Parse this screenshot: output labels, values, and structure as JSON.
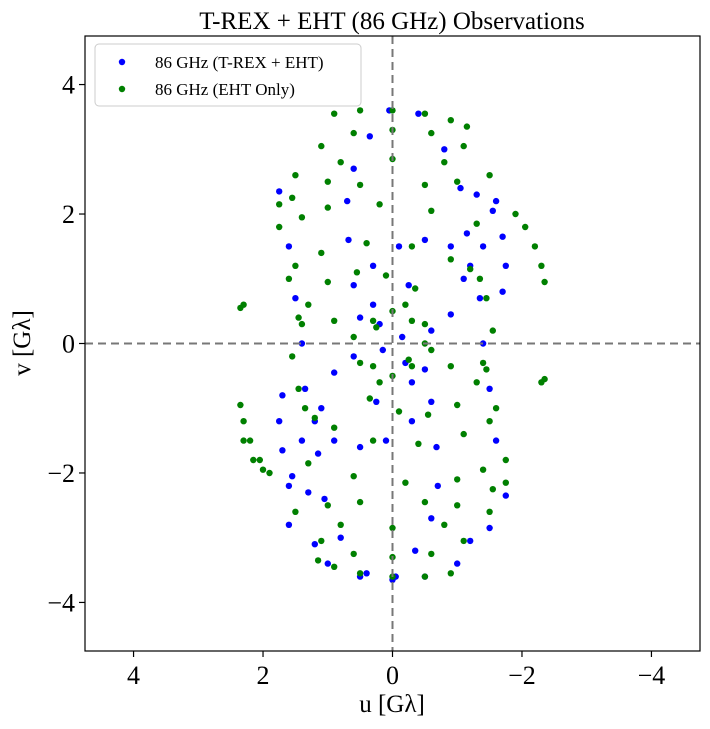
{
  "chart_data": {
    "type": "scatter",
    "title": "T-REX + EHT (86 GHz) Observations",
    "xlabel": "u [Gλ]",
    "ylabel": "v [Gλ]",
    "xlim": [
      4.75,
      -4.75
    ],
    "ylim": [
      -4.75,
      4.75
    ],
    "xticks": [
      4,
      2,
      0,
      -2,
      -4
    ],
    "xtick_labels": [
      "4",
      "2",
      "0",
      "−2",
      "−4"
    ],
    "yticks": [
      4,
      2,
      0,
      -2,
      -4
    ],
    "ytick_labels": [
      "4",
      "2",
      "0",
      "−2",
      "−4"
    ],
    "grid": false,
    "reference_lines": {
      "x": 0,
      "y": 0,
      "style": "dashed",
      "color": "#777777"
    },
    "legend": {
      "position": "upper-left"
    },
    "series": [
      {
        "name": "86 GHz (T-REX + EHT)",
        "color": "#0000ff",
        "points": [
          [
            0.05,
            3.6
          ],
          [
            0.35,
            3.2
          ],
          [
            0.6,
            2.7
          ],
          [
            0.7,
            2.2
          ],
          [
            0.68,
            1.6
          ],
          [
            0.6,
            0.9
          ],
          [
            0.5,
            0.4
          ],
          [
            -0.05,
            -3.6
          ],
          [
            -0.35,
            -3.2
          ],
          [
            -0.6,
            -2.7
          ],
          [
            -0.7,
            -2.2
          ],
          [
            -0.68,
            -1.6
          ],
          [
            -0.6,
            -0.9
          ],
          [
            -0.5,
            -0.4
          ],
          [
            -0.4,
            3.55
          ],
          [
            -0.8,
            3.0
          ],
          [
            -1.05,
            2.4
          ],
          [
            -1.15,
            1.7
          ],
          [
            -1.1,
            1.0
          ],
          [
            -0.9,
            0.45
          ],
          [
            0.4,
            -3.55
          ],
          [
            0.8,
            -3.0
          ],
          [
            1.05,
            -2.4
          ],
          [
            1.15,
            -1.7
          ],
          [
            1.1,
            -1.0
          ],
          [
            0.9,
            -0.45
          ],
          [
            1.75,
            2.35
          ],
          [
            1.6,
            1.5
          ],
          [
            1.5,
            0.7
          ],
          [
            1.4,
            0.0
          ],
          [
            1.35,
            -0.7
          ],
          [
            1.4,
            -1.5
          ],
          [
            1.6,
            -2.2
          ],
          [
            -1.75,
            -2.35
          ],
          [
            -1.6,
            -1.5
          ],
          [
            -1.5,
            -0.7
          ],
          [
            -1.4,
            0.0
          ],
          [
            -1.35,
            0.7
          ],
          [
            -1.4,
            1.5
          ],
          [
            -1.6,
            2.2
          ],
          [
            -1.2,
            1.2
          ],
          [
            -0.9,
            1.5
          ],
          [
            -0.5,
            1.6
          ],
          [
            -0.1,
            1.5
          ],
          [
            0.3,
            1.2
          ],
          [
            1.2,
            -1.2
          ],
          [
            0.9,
            -1.5
          ],
          [
            0.5,
            -1.6
          ],
          [
            0.1,
            -1.5
          ],
          [
            -0.3,
            -1.2
          ],
          [
            -1.3,
            2.3
          ],
          [
            -1.55,
            2.05
          ],
          [
            -1.7,
            1.65
          ],
          [
            -1.75,
            1.2
          ],
          [
            -1.7,
            0.8
          ],
          [
            1.3,
            -2.3
          ],
          [
            1.55,
            -2.05
          ],
          [
            1.7,
            -1.65
          ],
          [
            1.75,
            -1.2
          ],
          [
            1.7,
            -0.8
          ],
          [
            1.0,
            -3.4
          ],
          [
            0.5,
            -3.6
          ],
          [
            0.0,
            -3.65
          ],
          [
            -0.5,
            -3.6
          ],
          [
            -1.0,
            -3.4
          ],
          [
            1.6,
            -2.8
          ],
          [
            1.2,
            -3.1
          ],
          [
            -1.2,
            -3.05
          ],
          [
            -1.5,
            -2.85
          ],
          [
            0.2,
            0.3
          ],
          [
            0.3,
            0.6
          ],
          [
            -0.2,
            -0.3
          ],
          [
            -0.3,
            -0.6
          ],
          [
            0.15,
            -0.1
          ],
          [
            -0.15,
            0.1
          ],
          [
            -0.25,
            0.9
          ],
          [
            0.25,
            -0.9
          ],
          [
            0.6,
            -0.2
          ],
          [
            -0.6,
            0.2
          ]
        ]
      },
      {
        "name": "86 GHz (EHT Only)",
        "color": "#008000",
        "points": [
          [
            0.9,
            3.55
          ],
          [
            0.5,
            3.6
          ],
          [
            0.0,
            3.6
          ],
          [
            -0.5,
            3.55
          ],
          [
            -0.9,
            3.45
          ],
          [
            -1.15,
            3.35
          ],
          [
            -0.9,
            -3.55
          ],
          [
            -0.5,
            -3.6
          ],
          [
            0.0,
            -3.6
          ],
          [
            0.5,
            -3.55
          ],
          [
            0.9,
            -3.45
          ],
          [
            1.15,
            -3.35
          ],
          [
            1.1,
            3.05
          ],
          [
            0.6,
            3.25
          ],
          [
            0.0,
            3.3
          ],
          [
            -0.6,
            3.25
          ],
          [
            -1.1,
            3.05
          ],
          [
            -1.1,
            -3.05
          ],
          [
            -0.6,
            -3.25
          ],
          [
            0.0,
            -3.3
          ],
          [
            0.6,
            -3.25
          ],
          [
            1.1,
            -3.05
          ],
          [
            1.5,
            2.6
          ],
          [
            0.8,
            2.8
          ],
          [
            0.0,
            2.85
          ],
          [
            -0.8,
            2.8
          ],
          [
            -1.5,
            2.6
          ],
          [
            -1.5,
            -2.6
          ],
          [
            -0.8,
            -2.8
          ],
          [
            0.0,
            -2.85
          ],
          [
            0.8,
            -2.8
          ],
          [
            1.5,
            -2.6
          ],
          [
            1.75,
            1.8
          ],
          [
            1.0,
            2.1
          ],
          [
            0.2,
            2.15
          ],
          [
            -0.6,
            2.05
          ],
          [
            -1.3,
            1.85
          ],
          [
            -1.75,
            -1.8
          ],
          [
            -1.0,
            -2.1
          ],
          [
            -0.2,
            -2.15
          ],
          [
            0.6,
            -2.05
          ],
          [
            1.3,
            -1.85
          ],
          [
            1.6,
            1.0
          ],
          [
            1.1,
            1.4
          ],
          [
            0.4,
            1.55
          ],
          [
            -0.3,
            1.5
          ],
          [
            -0.9,
            1.3
          ],
          [
            -1.35,
            1.0
          ],
          [
            -1.6,
            -1.0
          ],
          [
            -1.1,
            -1.4
          ],
          [
            -0.4,
            -1.55
          ],
          [
            0.3,
            -1.5
          ],
          [
            0.9,
            -1.3
          ],
          [
            1.35,
            -1.0
          ],
          [
            1.75,
            2.15
          ],
          [
            1.55,
            2.25
          ],
          [
            -1.75,
            -2.15
          ],
          [
            -1.55,
            -2.25
          ],
          [
            -1.9,
            2.0
          ],
          [
            -2.05,
            1.8
          ],
          [
            -2.2,
            1.5
          ],
          [
            -2.3,
            1.2
          ],
          [
            -2.35,
            0.95
          ],
          [
            1.9,
            -2.0
          ],
          [
            2.05,
            -1.8
          ],
          [
            2.2,
            -1.5
          ],
          [
            2.3,
            -1.2
          ],
          [
            2.35,
            -0.95
          ],
          [
            2.3,
            0.6
          ],
          [
            2.35,
            0.55
          ],
          [
            -2.3,
            -0.6
          ],
          [
            -2.35,
            -0.55
          ],
          [
            2.3,
            -1.5
          ],
          [
            2.15,
            -1.8
          ],
          [
            2.0,
            -1.95
          ],
          [
            1.3,
            0.6
          ],
          [
            1.0,
            0.95
          ],
          [
            0.55,
            1.1
          ],
          [
            0.1,
            1.05
          ],
          [
            -0.35,
            0.85
          ],
          [
            -1.3,
            -0.6
          ],
          [
            -1.0,
            -0.95
          ],
          [
            -0.55,
            -1.1
          ],
          [
            -0.1,
            -1.05
          ],
          [
            0.35,
            -0.85
          ],
          [
            0.9,
            0.35
          ],
          [
            0.6,
            0.1
          ],
          [
            0.25,
            0.25
          ],
          [
            -0.25,
            -0.25
          ],
          [
            -0.6,
            -0.1
          ],
          [
            -0.9,
            -0.35
          ],
          [
            0.5,
            -0.3
          ],
          [
            0.2,
            -0.6
          ],
          [
            -0.5,
            0.3
          ],
          [
            -0.2,
            0.6
          ],
          [
            1.4,
            0.3
          ],
          [
            1.55,
            -0.2
          ],
          [
            1.45,
            -0.7
          ],
          [
            1.2,
            -1.15
          ],
          [
            -1.4,
            -0.3
          ],
          [
            -1.55,
            0.2
          ],
          [
            -1.45,
            0.7
          ],
          [
            -1.2,
            1.15
          ],
          [
            0.3,
            -0.35
          ],
          [
            0.0,
            -0.5
          ],
          [
            -0.3,
            -0.35
          ],
          [
            -0.5,
            0.0
          ],
          [
            -0.3,
            0.35
          ],
          [
            0.0,
            0.5
          ],
          [
            0.3,
            0.35
          ],
          [
            1.0,
            2.5
          ],
          [
            0.5,
            2.45
          ],
          [
            -0.5,
            2.45
          ],
          [
            -1.0,
            2.5
          ],
          [
            -1.0,
            -2.5
          ],
          [
            -0.5,
            -2.45
          ],
          [
            0.5,
            -2.45
          ],
          [
            1.0,
            -2.5
          ],
          [
            1.4,
            1.95
          ],
          [
            1.5,
            1.2
          ],
          [
            1.45,
            0.4
          ],
          [
            -1.4,
            -1.95
          ],
          [
            -1.5,
            -1.2
          ],
          [
            -1.45,
            -0.4
          ]
        ]
      }
    ]
  }
}
